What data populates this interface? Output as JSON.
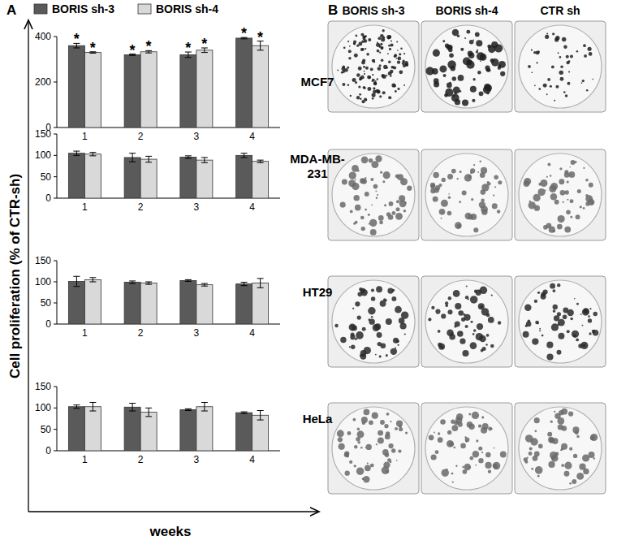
{
  "figure": {
    "panel_a_label": "A",
    "panel_b_label": "B",
    "y_label": "Cell proliferation (% of CTR-sh)",
    "x_label": "weeks"
  },
  "chart_data": [
    {
      "type": "bar",
      "title": "MCF7",
      "legend": "top",
      "categories": [
        "1",
        "2",
        "3",
        "4"
      ],
      "ylim": [
        0,
        400
      ],
      "yticks": [
        0,
        200,
        400
      ],
      "series": [
        {
          "name": "BORIS sh-3",
          "color": "#5a5a5a",
          "values": [
            360,
            320,
            320,
            393
          ],
          "errors": [
            10,
            3,
            12,
            3
          ],
          "significance": [
            "*",
            "*",
            "*",
            "*"
          ]
        },
        {
          "name": "BORIS sh-4",
          "color": "#d9d9d9",
          "values": [
            330,
            333,
            340,
            360
          ],
          "errors": [
            3,
            5,
            10,
            20
          ],
          "significance": [
            "*",
            "*",
            "*",
            "*"
          ]
        }
      ]
    },
    {
      "type": "bar",
      "title": "MDA-MB-231",
      "categories": [
        "1",
        "2",
        "3",
        "4"
      ],
      "ylim": [
        0,
        150
      ],
      "yticks": [
        0,
        50,
        100,
        150
      ],
      "series": [
        {
          "name": "BORIS sh-3",
          "color": "#5a5a5a",
          "values": [
            105,
            95,
            96,
            100
          ],
          "errors": [
            5,
            10,
            3,
            5
          ]
        },
        {
          "name": "BORIS sh-4",
          "color": "#d9d9d9",
          "values": [
            103,
            91,
            89,
            86
          ],
          "errors": [
            4,
            7,
            6,
            3
          ]
        }
      ]
    },
    {
      "type": "bar",
      "title": "HT29",
      "categories": [
        "1",
        "2",
        "3",
        "4"
      ],
      "ylim": [
        0,
        150
      ],
      "yticks": [
        0,
        50,
        100,
        150
      ],
      "series": [
        {
          "name": "BORIS sh-3",
          "color": "#5a5a5a",
          "values": [
            101,
            99,
            103,
            95
          ],
          "errors": [
            12,
            3,
            2,
            4
          ]
        },
        {
          "name": "BORIS sh-4",
          "color": "#d9d9d9",
          "values": [
            105,
            97,
            93,
            97
          ],
          "errors": [
            5,
            3,
            3,
            11
          ]
        }
      ]
    },
    {
      "type": "bar",
      "title": "HeLa",
      "categories": [
        "1",
        "2",
        "3",
        "4"
      ],
      "ylim": [
        0,
        150
      ],
      "yticks": [
        0,
        50,
        100,
        150
      ],
      "series": [
        {
          "name": "BORIS sh-3",
          "color": "#5a5a5a",
          "values": [
            103,
            102,
            96,
            89
          ],
          "errors": [
            4,
            9,
            2,
            2
          ]
        },
        {
          "name": "BORIS sh-4",
          "color": "#d9d9d9",
          "values": [
            103,
            90,
            103,
            83
          ],
          "errors": [
            10,
            10,
            10,
            11
          ]
        }
      ]
    }
  ],
  "colony_images": {
    "columns": [
      "BORIS sh-3",
      "BORIS sh-4",
      "CTR sh"
    ]
  }
}
